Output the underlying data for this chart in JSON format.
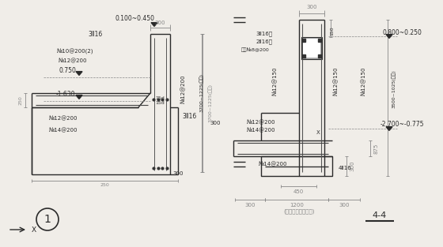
{
  "bg_color": "#f0ede8",
  "line_color": "#2a2a2a",
  "text_color": "#2a2a2a",
  "gray": "#888888",
  "figsize": [
    5.6,
    3.13
  ],
  "dpi": 100,
  "xlim": [
    0,
    560
  ],
  "ylim": [
    0,
    313
  ]
}
